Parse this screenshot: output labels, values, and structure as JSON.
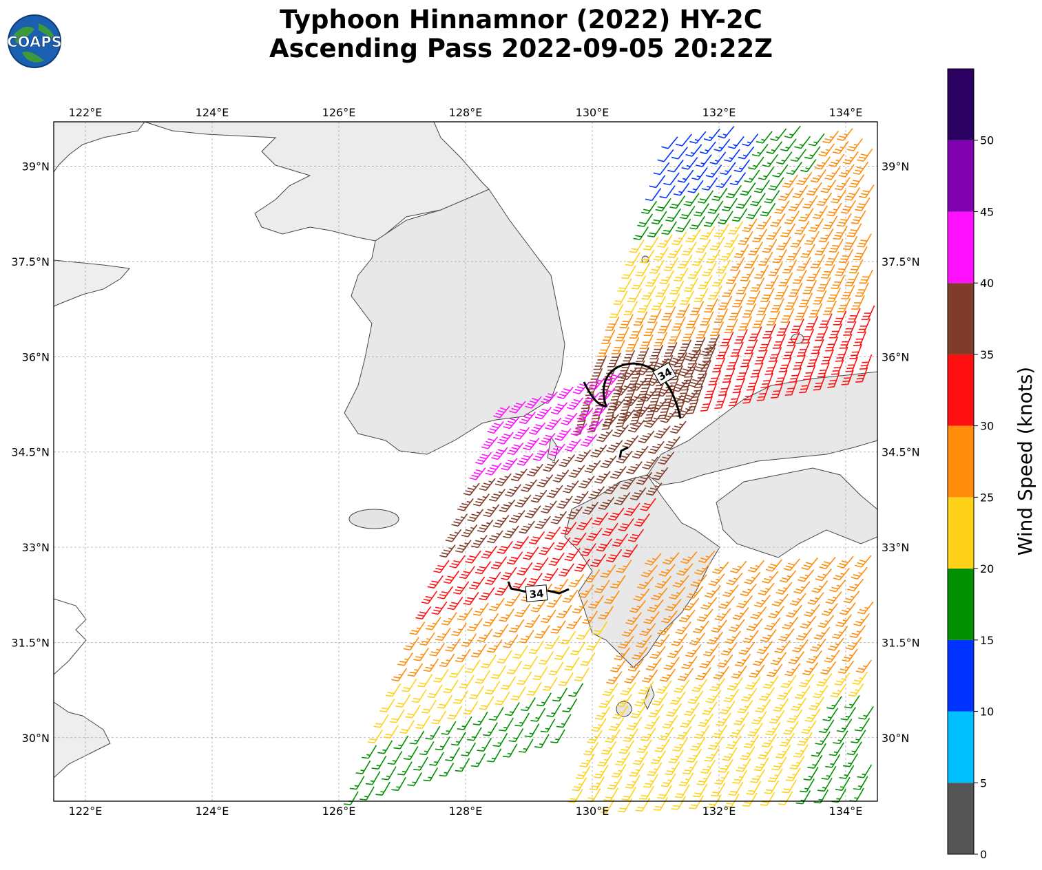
{
  "title_line1": "Typhoon Hinnamnor (2022) HY-2C",
  "title_line2": "Ascending Pass 2022-09-05 20:22Z",
  "logo_text": "COAPS",
  "map": {
    "lon_range": [
      121.5,
      134.5
    ],
    "lat_range": [
      29.0,
      39.7
    ],
    "lon_ticks": [
      {
        "value": 122,
        "label": "122°E"
      },
      {
        "value": 124,
        "label": "124°E"
      },
      {
        "value": 126,
        "label": "126°E"
      },
      {
        "value": 128,
        "label": "128°E"
      },
      {
        "value": 130,
        "label": "130°E"
      },
      {
        "value": 132,
        "label": "132°E"
      },
      {
        "value": 134,
        "label": "134°E"
      }
    ],
    "lat_ticks": [
      {
        "value": 30,
        "label": "30°N"
      },
      {
        "value": 31.5,
        "label": "31.5°N"
      },
      {
        "value": 33,
        "label": "33°N"
      },
      {
        "value": 34.5,
        "label": "34.5°N"
      },
      {
        "value": 36,
        "label": "36°N"
      },
      {
        "value": 37.5,
        "label": "37.5°N"
      },
      {
        "value": 39,
        "label": "39°N"
      }
    ],
    "gridlines": true,
    "contour_label": "34"
  },
  "colorbar": {
    "label": "Wind Speed (knots)",
    "ticks": [
      "0",
      "5",
      "10",
      "15",
      "20",
      "25",
      "30",
      "35",
      "40",
      "45",
      "50"
    ],
    "bins": [
      {
        "from": 0,
        "to": 5,
        "color": "#555555"
      },
      {
        "from": 5,
        "to": 10,
        "color": "#00bfff"
      },
      {
        "from": 10,
        "to": 15,
        "color": "#0033ff"
      },
      {
        "from": 15,
        "to": 20,
        "color": "#009000"
      },
      {
        "from": 20,
        "to": 25,
        "color": "#ffd21a"
      },
      {
        "from": 25,
        "to": 30,
        "color": "#ff8c0a"
      },
      {
        "from": 30,
        "to": 35,
        "color": "#ff1010"
      },
      {
        "from": 35,
        "to": 40,
        "color": "#7f3c2a"
      },
      {
        "from": 40,
        "to": 45,
        "color": "#ff10ff"
      },
      {
        "from": 45,
        "to": 50,
        "color": "#8000b0"
      },
      {
        "from": 50,
        "to": 55,
        "color": "#2a0060"
      }
    ]
  }
}
